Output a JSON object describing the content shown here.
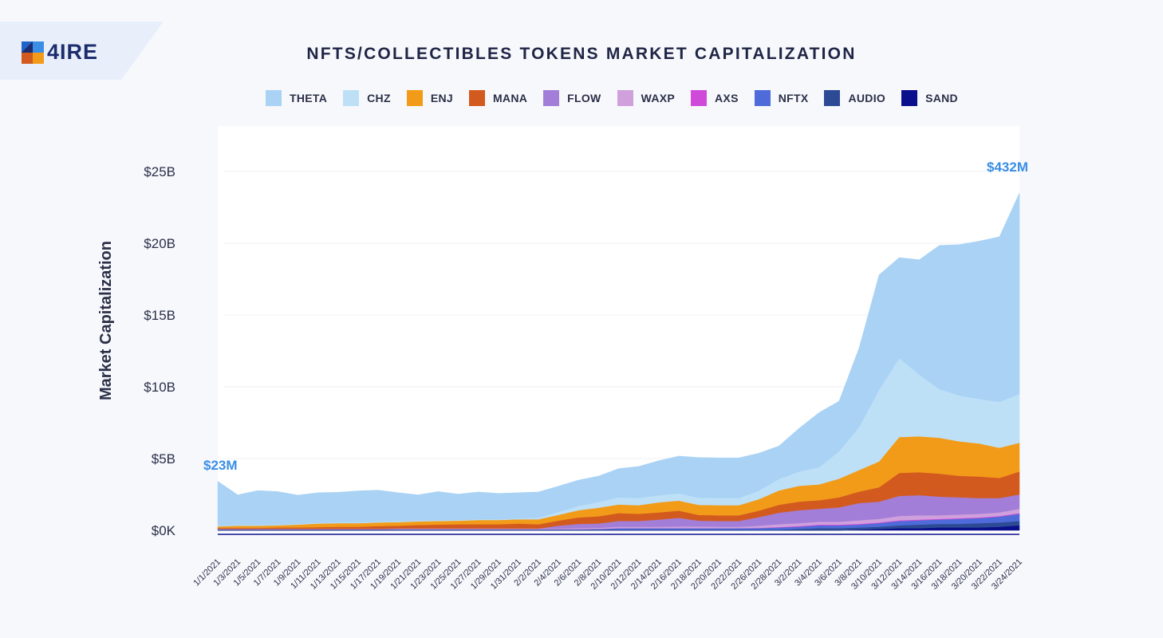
{
  "brand": {
    "name": "4IRE"
  },
  "chart_data": {
    "type": "area",
    "stacked": true,
    "title": "NFTS/COLLECTIBLES TOKENS MARKET CAPITALIZATION",
    "ylabel": "Market Capitalization",
    "xlabel": "",
    "ylim": [
      0,
      27000000000
    ],
    "yticks": [
      {
        "value": 0,
        "label": "$0K"
      },
      {
        "value": 5000000000,
        "label": "$5B"
      },
      {
        "value": 10000000000,
        "label": "$10B"
      },
      {
        "value": 15000000000,
        "label": "$15B"
      },
      {
        "value": 20000000000,
        "label": "$20B"
      },
      {
        "value": 25000000000,
        "label": "$25B"
      }
    ],
    "grid": true,
    "legend_position": "top",
    "annotations": [
      {
        "text": "$23M",
        "date": "1/1/2021",
        "color": "#3a8ee6"
      },
      {
        "text": "$432M",
        "date": "3/24/2021",
        "color": "#3a8ee6"
      }
    ],
    "x": [
      "1/1/2021",
      "1/3/2021",
      "1/5/2021",
      "1/7/2021",
      "1/9/2021",
      "1/11/2021",
      "1/13/2021",
      "1/15/2021",
      "1/17/2021",
      "1/19/2021",
      "1/21/2021",
      "1/23/2021",
      "1/25/2021",
      "1/27/2021",
      "1/29/2021",
      "1/31/2021",
      "2/2/2021",
      "2/4/2021",
      "2/6/2021",
      "2/8/2021",
      "2/10/2021",
      "2/12/2021",
      "2/14/2021",
      "2/16/2021",
      "2/18/2021",
      "2/20/2021",
      "2/22/2021",
      "2/26/2021",
      "2/28/2021",
      "3/2/2021",
      "3/4/2021",
      "3/6/2021",
      "3/8/2021",
      "3/10/2021",
      "3/12/2021",
      "3/14/2021",
      "3/16/2021",
      "3/18/2021",
      "3/20/2021",
      "3/22/2021",
      "3/24/2021"
    ],
    "series": [
      {
        "name": "SAND",
        "color": "#0a0f8c",
        "values": [
          0.0,
          0.0,
          0.0,
          0.0,
          0.0,
          0.0,
          0.0,
          0.0,
          0.0,
          0.0,
          0.0,
          0.0,
          0.0,
          0.0,
          0.0,
          0.0,
          0.0,
          0.0,
          0.0,
          0.0,
          0.0,
          0.0,
          0.0,
          0.0,
          0.0,
          0.0,
          0.0,
          0.0,
          0.0,
          0.0,
          0.0,
          0.0,
          0.05,
          0.1,
          0.15,
          0.15,
          0.2,
          0.2,
          0.2,
          0.25,
          0.35
        ]
      },
      {
        "name": "AUDIO",
        "color": "#2d4a94",
        "values": [
          0.05,
          0.05,
          0.05,
          0.05,
          0.05,
          0.05,
          0.05,
          0.05,
          0.05,
          0.05,
          0.05,
          0.05,
          0.05,
          0.05,
          0.05,
          0.05,
          0.05,
          0.05,
          0.05,
          0.05,
          0.05,
          0.05,
          0.05,
          0.05,
          0.05,
          0.05,
          0.05,
          0.05,
          0.05,
          0.1,
          0.15,
          0.15,
          0.15,
          0.15,
          0.2,
          0.25,
          0.25,
          0.25,
          0.3,
          0.3,
          0.3
        ]
      },
      {
        "name": "NFTX",
        "color": "#4f6bd9",
        "values": [
          0.02,
          0.02,
          0.02,
          0.02,
          0.02,
          0.02,
          0.02,
          0.02,
          0.02,
          0.02,
          0.02,
          0.02,
          0.02,
          0.02,
          0.02,
          0.02,
          0.02,
          0.03,
          0.03,
          0.05,
          0.1,
          0.1,
          0.1,
          0.1,
          0.1,
          0.1,
          0.1,
          0.1,
          0.15,
          0.15,
          0.2,
          0.2,
          0.2,
          0.25,
          0.3,
          0.3,
          0.3,
          0.35,
          0.35,
          0.4,
          0.5
        ]
      },
      {
        "name": "AXS",
        "color": "#d04ad9",
        "values": [
          0.0,
          0.0,
          0.0,
          0.0,
          0.0,
          0.0,
          0.0,
          0.0,
          0.0,
          0.0,
          0.0,
          0.0,
          0.0,
          0.0,
          0.0,
          0.0,
          0.0,
          0.0,
          0.0,
          0.0,
          0.0,
          0.0,
          0.0,
          0.0,
          0.0,
          0.0,
          0.0,
          0.02,
          0.03,
          0.05,
          0.05,
          0.05,
          0.05,
          0.05,
          0.05,
          0.05,
          0.05,
          0.05,
          0.05,
          0.05,
          0.05
        ]
      },
      {
        "name": "WAXP",
        "color": "#cfa0dc",
        "values": [
          0.03,
          0.03,
          0.03,
          0.03,
          0.03,
          0.03,
          0.03,
          0.03,
          0.03,
          0.05,
          0.05,
          0.05,
          0.05,
          0.05,
          0.05,
          0.05,
          0.05,
          0.05,
          0.07,
          0.08,
          0.1,
          0.1,
          0.1,
          0.12,
          0.12,
          0.1,
          0.1,
          0.15,
          0.2,
          0.2,
          0.2,
          0.2,
          0.25,
          0.25,
          0.3,
          0.3,
          0.25,
          0.25,
          0.25,
          0.25,
          0.3
        ]
      },
      {
        "name": "FLOW",
        "color": "#a27ed8",
        "values": [
          0.0,
          0.0,
          0.0,
          0.0,
          0.0,
          0.0,
          0.0,
          0.0,
          0.0,
          0.0,
          0.0,
          0.0,
          0.0,
          0.0,
          0.0,
          0.0,
          0.0,
          0.2,
          0.3,
          0.3,
          0.4,
          0.4,
          0.5,
          0.6,
          0.4,
          0.4,
          0.4,
          0.6,
          0.8,
          0.9,
          0.9,
          1.0,
          1.2,
          1.2,
          1.4,
          1.4,
          1.3,
          1.2,
          1.1,
          1.0,
          1.0
        ]
      },
      {
        "name": "MANA",
        "color": "#d35a1e",
        "values": [
          0.07,
          0.07,
          0.07,
          0.1,
          0.1,
          0.12,
          0.15,
          0.15,
          0.2,
          0.2,
          0.25,
          0.28,
          0.3,
          0.3,
          0.3,
          0.35,
          0.3,
          0.35,
          0.45,
          0.5,
          0.55,
          0.5,
          0.5,
          0.5,
          0.4,
          0.4,
          0.4,
          0.45,
          0.55,
          0.6,
          0.6,
          0.7,
          0.8,
          1.0,
          1.6,
          1.6,
          1.6,
          1.5,
          1.5,
          1.4,
          1.6
        ]
      },
      {
        "name": "ENJ",
        "color": "#f29b18",
        "values": [
          0.1,
          0.15,
          0.15,
          0.15,
          0.2,
          0.25,
          0.25,
          0.25,
          0.25,
          0.25,
          0.25,
          0.25,
          0.25,
          0.3,
          0.3,
          0.3,
          0.35,
          0.4,
          0.5,
          0.6,
          0.6,
          0.6,
          0.7,
          0.7,
          0.7,
          0.7,
          0.7,
          0.8,
          1.0,
          1.1,
          1.1,
          1.3,
          1.5,
          1.8,
          2.5,
          2.5,
          2.5,
          2.4,
          2.3,
          2.1,
          2.0
        ]
      },
      {
        "name": "CHZ",
        "color": "#bde0f7",
        "values": [
          0.05,
          0.05,
          0.05,
          0.05,
          0.05,
          0.05,
          0.05,
          0.05,
          0.05,
          0.05,
          0.05,
          0.05,
          0.05,
          0.05,
          0.05,
          0.05,
          0.1,
          0.2,
          0.3,
          0.4,
          0.5,
          0.5,
          0.5,
          0.5,
          0.5,
          0.5,
          0.5,
          0.6,
          0.8,
          1.0,
          1.2,
          1.9,
          3.0,
          5.0,
          5.5,
          4.3,
          3.4,
          3.2,
          3.1,
          3.2,
          3.4
        ]
      },
      {
        "name": "THETA",
        "color": "#a9d2f5",
        "values": [
          3.1,
          2.1,
          2.4,
          2.3,
          2.0,
          2.1,
          2.1,
          2.2,
          2.2,
          2.0,
          1.8,
          2.0,
          1.8,
          1.9,
          1.8,
          1.8,
          1.8,
          1.8,
          1.8,
          1.8,
          2.0,
          2.2,
          2.4,
          2.6,
          2.8,
          2.8,
          2.8,
          2.6,
          2.3,
          3.0,
          3.8,
          3.5,
          5.5,
          8.0,
          7.0,
          8.0,
          10.0,
          10.5,
          11.0,
          11.5,
          14.0
        ]
      }
    ]
  },
  "legend_order": [
    "THETA",
    "CHZ",
    "ENJ",
    "MANA",
    "FLOW",
    "WAXP",
    "AXS",
    "NFTX",
    "AUDIO",
    "SAND"
  ],
  "colors": {
    "background": "#f7f8fc",
    "plot_bg": "#ffffff",
    "annotation": "#3a8ee6",
    "logo_band": "#e8effb"
  }
}
